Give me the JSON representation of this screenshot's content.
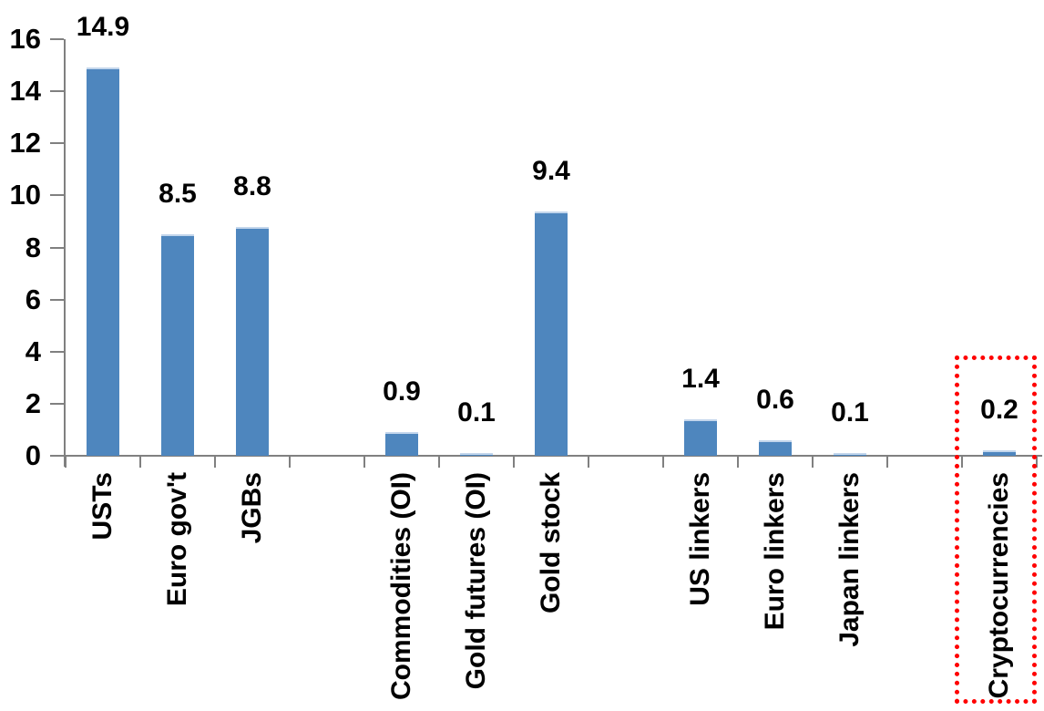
{
  "chart_data": {
    "type": "bar",
    "groups": [
      [
        {
          "label": "USTs",
          "value": 14.9,
          "value_label": "14.9"
        },
        {
          "label": "Euro gov't",
          "value": 8.5,
          "value_label": "8.5"
        },
        {
          "label": "JGBs",
          "value": 8.8,
          "value_label": "8.8"
        }
      ],
      [
        {
          "label": "Commodities (OI)",
          "value": 0.9,
          "value_label": "0.9"
        },
        {
          "label": "Gold futures (OI)",
          "value": 0.1,
          "value_label": "0.1"
        },
        {
          "label": "Gold stock",
          "value": 9.4,
          "value_label": "9.4"
        }
      ],
      [
        {
          "label": "US linkers",
          "value": 1.4,
          "value_label": "1.4"
        },
        {
          "label": "Euro linkers",
          "value": 0.6,
          "value_label": "0.6"
        },
        {
          "label": "Japan linkers",
          "value": 0.1,
          "value_label": "0.1"
        }
      ],
      [
        {
          "label": "Cryptocurrencies",
          "value": 0.2,
          "value_label": "0.2"
        }
      ]
    ],
    "ylim": [
      0,
      16
    ],
    "yticks": [
      0,
      2,
      4,
      6,
      8,
      10,
      12,
      14,
      16
    ],
    "grid": false,
    "legend": false,
    "data_labels_shown": true,
    "xlabel": "",
    "ylabel": "",
    "bar_color": "#4E86BE",
    "bar_top_edge_color": "#C3D6EC",
    "axis_color": "#808080",
    "text_color": "#000000",
    "highlight": {
      "label": "Cryptocurrencies",
      "style": "dotted-box",
      "color": "#FF0000"
    }
  }
}
